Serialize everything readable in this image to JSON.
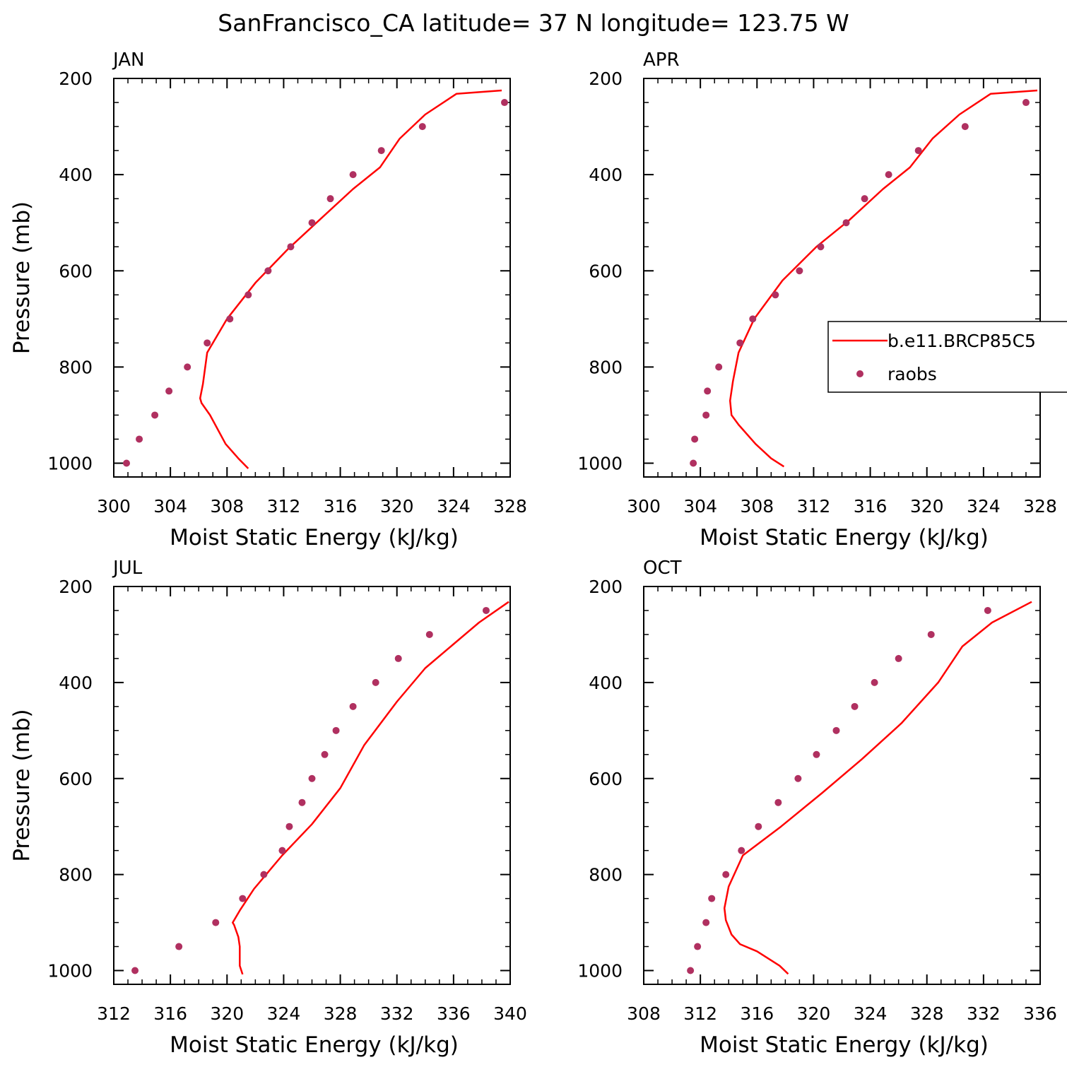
{
  "title": "SanFrancisco_CA  latitude= 37 N longitude= 123.75 W",
  "colors": {
    "model": "#ff0000",
    "obs": "#b03060",
    "axis": "#000000"
  },
  "legend": {
    "entries": [
      {
        "label": "b.e11.BRCP85C5",
        "style": "line",
        "color": "#ff0000"
      },
      {
        "label": "raobs",
        "style": "dot",
        "color": "#b03060"
      }
    ]
  },
  "chart_data": [
    {
      "type": "line",
      "title": "JAN",
      "xlabel": "Moist Static Energy (kJ/kg)",
      "ylabel": "Pressure (mb)",
      "xlim": [
        300,
        328
      ],
      "ylim": [
        1000,
        200
      ],
      "xticks": [
        300,
        304,
        308,
        312,
        316,
        320,
        324,
        328
      ],
      "yticks": [
        200,
        400,
        600,
        800,
        1000
      ],
      "series": [
        {
          "name": "b.e11.BRCP85C5",
          "kind": "line",
          "x": [
            309.5,
            308.8,
            307.9,
            306.8,
            306.2,
            306.1,
            306.3,
            306.6,
            308.0,
            310.0,
            312.3,
            314.5,
            316.9,
            318.8,
            320.2,
            322.0,
            324.2,
            327.4
          ],
          "y": [
            1011,
            990,
            960,
            900,
            875,
            865,
            835,
            770,
            700,
            625,
            555,
            495,
            430,
            385,
            325,
            275,
            232,
            225
          ]
        },
        {
          "name": "raobs",
          "kind": "scatter",
          "x": [
            300.9,
            301.8,
            302.9,
            303.9,
            305.2,
            306.6,
            308.2,
            309.5,
            310.9,
            312.5,
            314.0,
            315.3,
            316.9,
            318.9,
            321.8,
            327.6
          ],
          "y": [
            1000,
            950,
            900,
            850,
            800,
            750,
            700,
            650,
            600,
            550,
            500,
            450,
            400,
            350,
            300,
            250
          ]
        }
      ]
    },
    {
      "type": "line",
      "title": "APR",
      "xlabel": "Moist Static Energy (kJ/kg)",
      "ylabel": "",
      "xlim": [
        300,
        328
      ],
      "ylim": [
        1000,
        200
      ],
      "xticks": [
        300,
        304,
        308,
        312,
        316,
        320,
        324,
        328
      ],
      "yticks": [
        200,
        400,
        600,
        800,
        1000
      ],
      "series": [
        {
          "name": "b.e11.BRCP85C5",
          "kind": "line",
          "x": [
            309.9,
            309.0,
            307.9,
            306.7,
            306.2,
            306.1,
            306.3,
            306.7,
            307.8,
            309.8,
            312.2,
            314.5,
            316.9,
            318.8,
            320.4,
            322.3,
            324.5,
            327.8
          ],
          "y": [
            1007,
            990,
            960,
            920,
            900,
            870,
            830,
            770,
            700,
            620,
            550,
            495,
            430,
            385,
            325,
            275,
            232,
            225
          ]
        },
        {
          "name": "raobs",
          "kind": "scatter",
          "x": [
            303.5,
            303.6,
            304.4,
            304.5,
            305.3,
            306.8,
            307.7,
            309.3,
            311.0,
            312.5,
            314.3,
            315.6,
            317.3,
            319.4,
            322.7,
            327.0
          ],
          "y": [
            1000,
            950,
            900,
            850,
            800,
            750,
            700,
            650,
            600,
            550,
            500,
            450,
            400,
            350,
            300,
            250
          ]
        }
      ]
    },
    {
      "type": "line",
      "title": "JUL",
      "xlabel": "Moist Static Energy (kJ/kg)",
      "ylabel": "Pressure (mb)",
      "xlim": [
        312,
        340
      ],
      "ylim": [
        1000,
        200
      ],
      "xticks": [
        312,
        316,
        320,
        324,
        328,
        332,
        336,
        340
      ],
      "yticks": [
        200,
        400,
        600,
        800,
        1000
      ],
      "series": [
        {
          "name": "b.e11.BRCP85C5",
          "kind": "line",
          "x": [
            321.1,
            320.9,
            320.9,
            320.9,
            320.8,
            320.5,
            320.4,
            320.9,
            321.9,
            323.9,
            326.0,
            328.0,
            329.7,
            332.0,
            334.0,
            336.0,
            337.8,
            339.9
          ],
          "y": [
            1008,
            990,
            970,
            950,
            930,
            905,
            900,
            875,
            830,
            760,
            695,
            620,
            530,
            440,
            370,
            320,
            275,
            232
          ]
        },
        {
          "name": "raobs",
          "kind": "scatter",
          "x": [
            313.5,
            316.6,
            319.2,
            321.1,
            322.6,
            323.9,
            324.4,
            325.3,
            326.0,
            326.9,
            327.7,
            328.9,
            330.5,
            332.1,
            334.3,
            338.3
          ],
          "y": [
            1000,
            950,
            900,
            850,
            800,
            750,
            700,
            650,
            600,
            550,
            500,
            450,
            400,
            350,
            300,
            250
          ]
        }
      ]
    },
    {
      "type": "line",
      "title": "OCT",
      "xlabel": "Moist Static Energy (kJ/kg)",
      "ylabel": "",
      "xlim": [
        308,
        336
      ],
      "ylim": [
        1000,
        200
      ],
      "xticks": [
        308,
        312,
        316,
        320,
        324,
        328,
        332,
        336
      ],
      "yticks": [
        200,
        400,
        600,
        800,
        1000
      ],
      "series": [
        {
          "name": "b.e11.BRCP85C5",
          "kind": "line",
          "x": [
            318.2,
            317.6,
            316.0,
            314.8,
            314.2,
            313.8,
            313.7,
            314.0,
            315.0,
            317.7,
            320.6,
            323.4,
            326.2,
            328.8,
            330.5,
            332.6,
            335.4
          ],
          "y": [
            1007,
            990,
            960,
            945,
            925,
            895,
            870,
            825,
            760,
            700,
            630,
            560,
            485,
            400,
            325,
            275,
            232
          ]
        },
        {
          "name": "raobs",
          "kind": "scatter",
          "x": [
            311.3,
            311.8,
            312.4,
            312.8,
            313.8,
            314.9,
            316.1,
            317.5,
            318.9,
            320.2,
            321.6,
            322.9,
            324.3,
            326.0,
            328.3,
            332.3
          ],
          "y": [
            1000,
            950,
            900,
            850,
            800,
            750,
            700,
            650,
            600,
            550,
            500,
            450,
            400,
            350,
            300,
            250
          ]
        }
      ]
    }
  ]
}
